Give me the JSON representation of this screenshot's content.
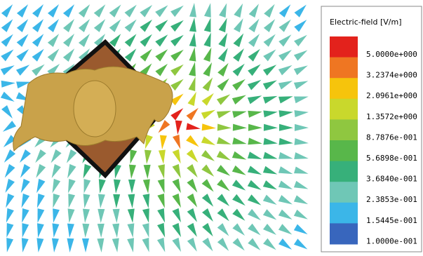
{
  "legend": {
    "title": "Electric-field [V/m]",
    "entries": [
      {
        "label": "5.0000e+000",
        "color": "#e3221c"
      },
      {
        "label": "3.2374e+000",
        "color": "#ef7622"
      },
      {
        "label": "2.0961e+000",
        "color": "#f6c40c"
      },
      {
        "label": "1.3572e+000",
        "color": "#c9d82c"
      },
      {
        "label": "8.7876e-001",
        "color": "#8fc740"
      },
      {
        "label": "5.6898e-001",
        "color": "#58b74a"
      },
      {
        "label": "3.6840e-001",
        "color": "#37b07a"
      },
      {
        "label": "2.3853e-001",
        "color": "#6fc7b6"
      },
      {
        "label": "1.5445e-001",
        "color": "#3bb6e8"
      },
      {
        "label": "1.0000e-001",
        "color": "#3866bd"
      }
    ]
  }
}
